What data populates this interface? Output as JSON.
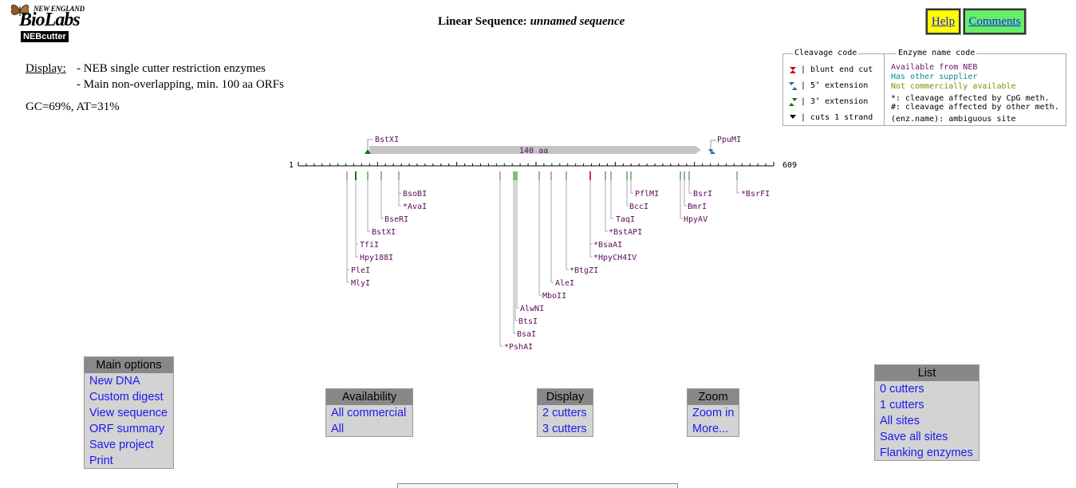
{
  "logo": {
    "line1": "NEW ENGLAND",
    "line2": "BioLabs",
    "line3": "NEBcutter"
  },
  "header": {
    "title_prefix": "Linear Sequence:",
    "title_name": "unnamed sequence"
  },
  "buttons": {
    "help": "Help",
    "comments": "Comments"
  },
  "display": {
    "label": "Display:",
    "lines": [
      "- NEB single cutter restriction enzymes",
      "- Main non-overlapping, min. 100 aa ORFs"
    ],
    "composition": "GC=69%, AT=31%"
  },
  "legend": {
    "cleavage_title": "Cleavage code",
    "cleavage_items": [
      "| blunt end cut",
      "| 5’ extension",
      "| 3’ extension",
      "| cuts 1 strand"
    ],
    "enzyme_title": "Enzyme name code",
    "enzyme_items": [
      {
        "text": "Available from NEB",
        "color": "#6b0f6b"
      },
      {
        "text": "Has other supplier",
        "color": "#0a8a8a"
      },
      {
        "text": "Not commercially available",
        "color": "#8a8a00"
      },
      {
        "text": "*: cleavage affected by CpG meth.",
        "color": "#000000"
      },
      {
        "text": "#: cleavage affected by other meth.",
        "color": "#000000"
      },
      {
        "text": "(enz.name): ambiguous site",
        "color": "#000000"
      }
    ]
  },
  "map": {
    "start": "1",
    "end": "609",
    "orf_label": "140 aa",
    "top_enzymes": [
      "BstXI",
      "PpuMI"
    ],
    "enzymes": [
      "BsoBI",
      "*AvaI",
      "BseRI",
      "BstXI",
      "TfiI",
      "Hpy188I",
      "PleI",
      "MlyI",
      "*PshAI",
      "BsaI",
      "BtsI",
      "AlwNI",
      "MboII",
      "AleI",
      "*BtgZI",
      "*HpyCH4IV",
      "*BsaAI",
      "*BstAPI",
      "TaqI",
      "BccI",
      "PflMI",
      "HpyAV",
      "BmrI",
      "BsrI",
      "*BsrFI"
    ]
  },
  "menus": {
    "main": {
      "title": "Main options",
      "items": [
        "New DNA",
        "Custom digest",
        "View sequence",
        "ORF summary",
        "Save project",
        "Print"
      ]
    },
    "availability": {
      "title": "Availability",
      "items": [
        "All commercial",
        "All"
      ]
    },
    "display": {
      "title": "Display",
      "items": [
        "2 cutters",
        "3 cutters"
      ]
    },
    "zoom": {
      "title": "Zoom",
      "items": [
        "Zoom in",
        "More..."
      ]
    },
    "list": {
      "title": "List",
      "items": [
        "0 cutters",
        "1 cutters",
        "All sites",
        "Save all sites",
        "Flanking enzymes"
      ]
    }
  },
  "colors": {
    "help_bg": "#ffff00",
    "comments_bg": "#66ee66",
    "menu_header": "#888888",
    "menu_bg": "#d3d3d3",
    "link": "#1a1aee",
    "enzyme_neb": "#5c0b5c"
  }
}
